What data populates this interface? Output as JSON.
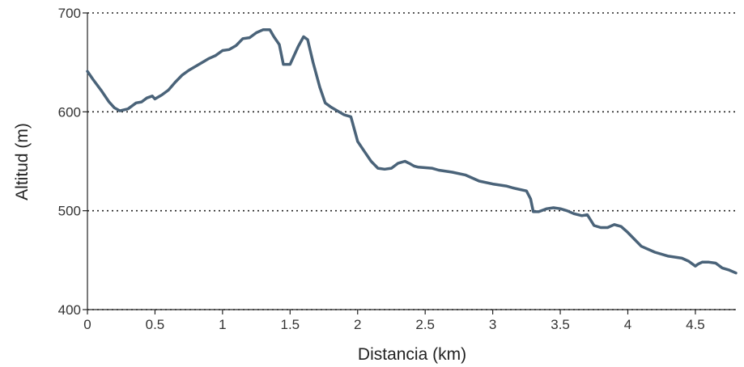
{
  "chart_data": {
    "type": "line",
    "title": "",
    "xlabel": "Distancia (km)",
    "ylabel": "Altitud (m)",
    "xlim": [
      0,
      4.8
    ],
    "ylim": [
      400,
      700
    ],
    "xticks": [
      0,
      0.5,
      1,
      1.5,
      2,
      2.5,
      3,
      3.5,
      4,
      4.5
    ],
    "xtick_labels": [
      "0",
      "0.5",
      "1",
      "1.5",
      "2",
      "2.5",
      "3",
      "3.5",
      "4",
      "4.5"
    ],
    "yticks": [
      400,
      500,
      600,
      700
    ],
    "ytick_labels": [
      "400",
      "500",
      "600",
      "700"
    ],
    "grid": "horizontal dotted",
    "line_color": "#4a6379",
    "series": [
      {
        "x": [
          0,
          0.04,
          0.1,
          0.16,
          0.2,
          0.24,
          0.3,
          0.36,
          0.4,
          0.44,
          0.48,
          0.5,
          0.55,
          0.6,
          0.65,
          0.7,
          0.75,
          0.8,
          0.85,
          0.9,
          0.95,
          1.0,
          1.05,
          1.1,
          1.15,
          1.2,
          1.25,
          1.3,
          1.35,
          1.38,
          1.42,
          1.45,
          1.5,
          1.53,
          1.56,
          1.6,
          1.63,
          1.67,
          1.72,
          1.76,
          1.8,
          1.85,
          1.9,
          1.95,
          2.0,
          2.05,
          2.1,
          2.15,
          2.2,
          2.25,
          2.3,
          2.35,
          2.38,
          2.42,
          2.45,
          2.55,
          2.6,
          2.7,
          2.8,
          2.9,
          3.0,
          3.1,
          3.15,
          3.25,
          3.28,
          3.3,
          3.34,
          3.4,
          3.45,
          3.5,
          3.55,
          3.6,
          3.66,
          3.7,
          3.75,
          3.8,
          3.85,
          3.9,
          3.95,
          4.0,
          4.05,
          4.1,
          4.2,
          4.3,
          4.4,
          4.45,
          4.5,
          4.52,
          4.55,
          4.6,
          4.65,
          4.7,
          4.75,
          4.8
        ],
        "y": [
          641,
          633,
          622,
          610,
          604,
          601,
          603,
          609,
          610,
          614,
          616,
          613,
          617,
          622,
          630,
          637,
          642,
          646,
          650,
          654,
          657,
          662,
          663,
          667,
          674,
          675,
          680,
          683,
          683,
          676,
          668,
          648,
          648,
          657,
          666,
          676,
          673,
          650,
          625,
          609,
          605,
          601,
          597,
          595,
          570,
          560,
          550,
          543,
          542,
          543,
          548,
          550,
          548,
          545,
          544,
          543,
          541,
          539,
          536,
          530,
          527,
          525,
          523,
          520,
          512,
          499,
          499,
          502,
          503,
          502,
          500,
          497,
          495,
          496,
          485,
          483,
          483,
          486,
          484,
          478,
          471,
          464,
          458,
          454,
          452,
          449,
          444,
          446,
          448,
          448,
          447,
          442,
          440,
          437
        ]
      }
    ]
  }
}
